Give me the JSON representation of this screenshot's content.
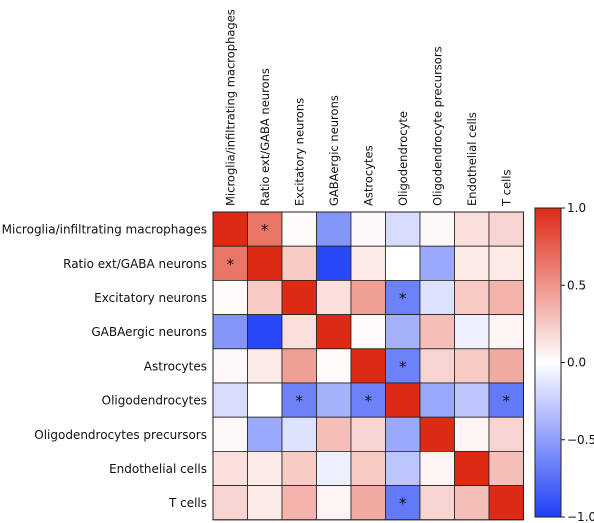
{
  "chart_data": {
    "type": "heatmap",
    "title": "",
    "xlabel": "",
    "ylabel": "",
    "columns": [
      "Microglia/infiltrating macrophages",
      "Ratio ext/GABA neurons",
      "Excitatory neurons",
      "GABAergic neurons",
      "Astrocytes",
      "Oligodendrocyte",
      "Oligodendrocyte precursors",
      "Endothelial cells",
      "T cells"
    ],
    "rows": [
      "Microglia/infiltrating macrophages",
      "Ratio ext/GABA neurons",
      "Excitatory neurons",
      "GABAergic neurons",
      "Astrocytes",
      "Oligodendrocytes",
      "Oligodendrocytes precursors",
      "Endothelial cells",
      "T cells"
    ],
    "values": [
      [
        1.0,
        0.65,
        0.02,
        -0.55,
        0.03,
        -0.18,
        0.03,
        0.15,
        0.2
      ],
      [
        0.65,
        1.0,
        0.25,
        -0.95,
        0.1,
        0.0,
        -0.45,
        0.1,
        0.1
      ],
      [
        0.02,
        0.25,
        1.0,
        0.15,
        0.45,
        -0.65,
        -0.15,
        0.25,
        0.35
      ],
      [
        -0.55,
        -0.95,
        0.15,
        1.0,
        0.02,
        -0.4,
        0.3,
        -0.08,
        0.05
      ],
      [
        0.03,
        0.1,
        0.45,
        0.02,
        1.0,
        -0.65,
        0.2,
        0.25,
        0.4
      ],
      [
        -0.18,
        0.0,
        -0.65,
        -0.4,
        -0.65,
        1.0,
        -0.45,
        -0.3,
        -0.7
      ],
      [
        0.03,
        -0.45,
        -0.15,
        0.3,
        0.2,
        -0.45,
        1.0,
        0.05,
        0.2
      ],
      [
        0.15,
        0.1,
        0.25,
        -0.08,
        0.25,
        -0.3,
        0.05,
        1.0,
        0.3
      ],
      [
        0.2,
        0.1,
        0.35,
        0.05,
        0.4,
        -0.7,
        0.2,
        0.3,
        1.0
      ]
    ],
    "significant": [
      [
        0,
        1
      ],
      [
        1,
        0
      ],
      [
        2,
        5
      ],
      [
        4,
        5
      ],
      [
        5,
        2
      ],
      [
        5,
        4
      ],
      [
        5,
        8
      ],
      [
        8,
        5
      ]
    ],
    "significance_marker": "*",
    "colorbar": {
      "range": [
        -1.0,
        1.0
      ],
      "ticks": [
        1.0,
        0.5,
        0.0,
        -0.5,
        -1.0
      ],
      "tick_labels": [
        "1.0",
        "0.5",
        "0.0",
        "−0.5",
        "−1.0"
      ],
      "colors": {
        "low": "#1f3ff5",
        "mid": "#ffffff",
        "high": "#dd2a14"
      }
    },
    "legend": "right"
  }
}
